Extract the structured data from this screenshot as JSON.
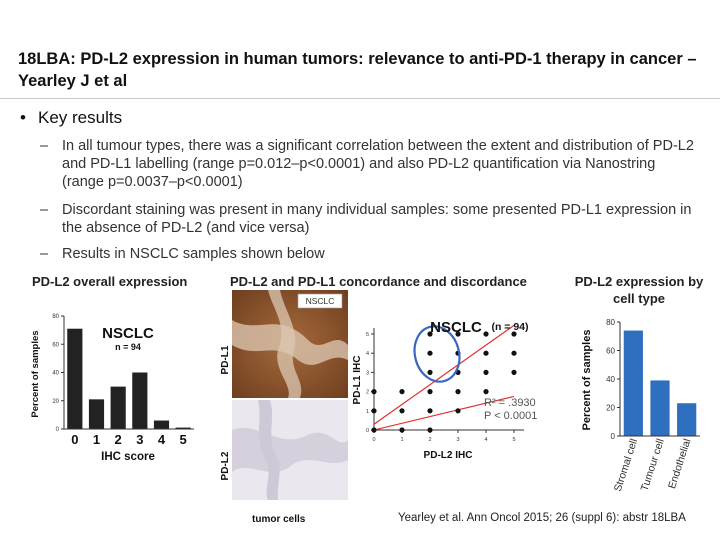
{
  "title": "18LBA: PD-L2 expression in human tumors: relevance to anti-PD-1 therapy in cancer – Yearley J et al",
  "key_results": {
    "heading": "Key results",
    "bullet_icon": "bullet-dot",
    "items": [
      "In all tumour types, there was a significant correlation between the extent and distribution of PD-L2 and PD-L1 labelling (range p=0.012–p<0.0001) and also PD-L2 quantification via Nanostring (range p=0.0037–p<0.0001)",
      "Discordant staining was present in many individual samples: some presented PD-L1 expression in the absence of PD-L2 (and vice versa)",
      "Results in NSCLC samples shown below"
    ]
  },
  "panels": {
    "overall": {
      "heading": "PD-L2 overall expression"
    },
    "concordance": {
      "heading": "PD-L2 and PD-L1 concordance and discordance",
      "image_label_top": "NSCLC",
      "image_axis_top": "PD-L1",
      "image_axis_bottom": "PD-L2",
      "image_caption": "tumor cells"
    },
    "cell_type": {
      "heading": "PD-L2 expression by cell type"
    }
  },
  "chart_data": [
    {
      "type": "bar",
      "title": "NSCLC",
      "subtitle": "n = 94",
      "xlabel": "IHC score",
      "ylabel": "Percent of samples",
      "categories": [
        "0",
        "1",
        "2",
        "3",
        "4",
        "5"
      ],
      "values": [
        71,
        21,
        30,
        40,
        6,
        1
      ],
      "ylim": [
        0,
        80
      ],
      "yticks": [
        "0",
        "20",
        "40",
        "60",
        "80"
      ],
      "bar_color": "#222222"
    },
    {
      "type": "scatter",
      "title": "NSCLC",
      "subtitle": "(n = 94)",
      "xlabel": "PD-L2 IHC",
      "ylabel": "PD-L1 IHC",
      "xlim": [
        0,
        5
      ],
      "ylim": [
        0,
        5
      ],
      "xticks": [
        "0",
        "1",
        "2",
        "3",
        "4",
        "5"
      ],
      "yticks": [
        "0",
        "1",
        "2",
        "3",
        "4",
        "5"
      ],
      "points": [
        {
          "x": 0,
          "y": 0
        },
        {
          "x": 0,
          "y": 1
        },
        {
          "x": 0,
          "y": 2
        },
        {
          "x": 1,
          "y": 0
        },
        {
          "x": 1,
          "y": 1
        },
        {
          "x": 1,
          "y": 2
        },
        {
          "x": 2,
          "y": 0
        },
        {
          "x": 2,
          "y": 1
        },
        {
          "x": 2,
          "y": 2
        },
        {
          "x": 2,
          "y": 3
        },
        {
          "x": 2,
          "y": 4
        },
        {
          "x": 2,
          "y": 5
        },
        {
          "x": 3,
          "y": 1
        },
        {
          "x": 3,
          "y": 2
        },
        {
          "x": 3,
          "y": 3
        },
        {
          "x": 3,
          "y": 4
        },
        {
          "x": 3,
          "y": 5
        },
        {
          "x": 4,
          "y": 2
        },
        {
          "x": 4,
          "y": 3
        },
        {
          "x": 4,
          "y": 4
        },
        {
          "x": 4,
          "y": 5
        },
        {
          "x": 5,
          "y": 3
        },
        {
          "x": 5,
          "y": 4
        },
        {
          "x": 5,
          "y": 5
        }
      ],
      "r2_label": "R² = .3930",
      "p_label": "P < 0.0001",
      "point_color": "#111111",
      "line_color": "#e0322d",
      "highlight_color": "#3a66c4"
    },
    {
      "type": "bar",
      "ylabel": "Percent of samples",
      "categories": [
        "Stromal cell",
        "Tumour cell",
        "Endothelial"
      ],
      "values": [
        74,
        39,
        23
      ],
      "ylim": [
        0,
        80
      ],
      "yticks": [
        "0",
        "20",
        "40",
        "60",
        "80"
      ],
      "bar_color": "#2f6fbf"
    }
  ],
  "citation": "Yearley et al. Ann Oncol 2015; 26 (suppl 6): abstr 18LBA"
}
